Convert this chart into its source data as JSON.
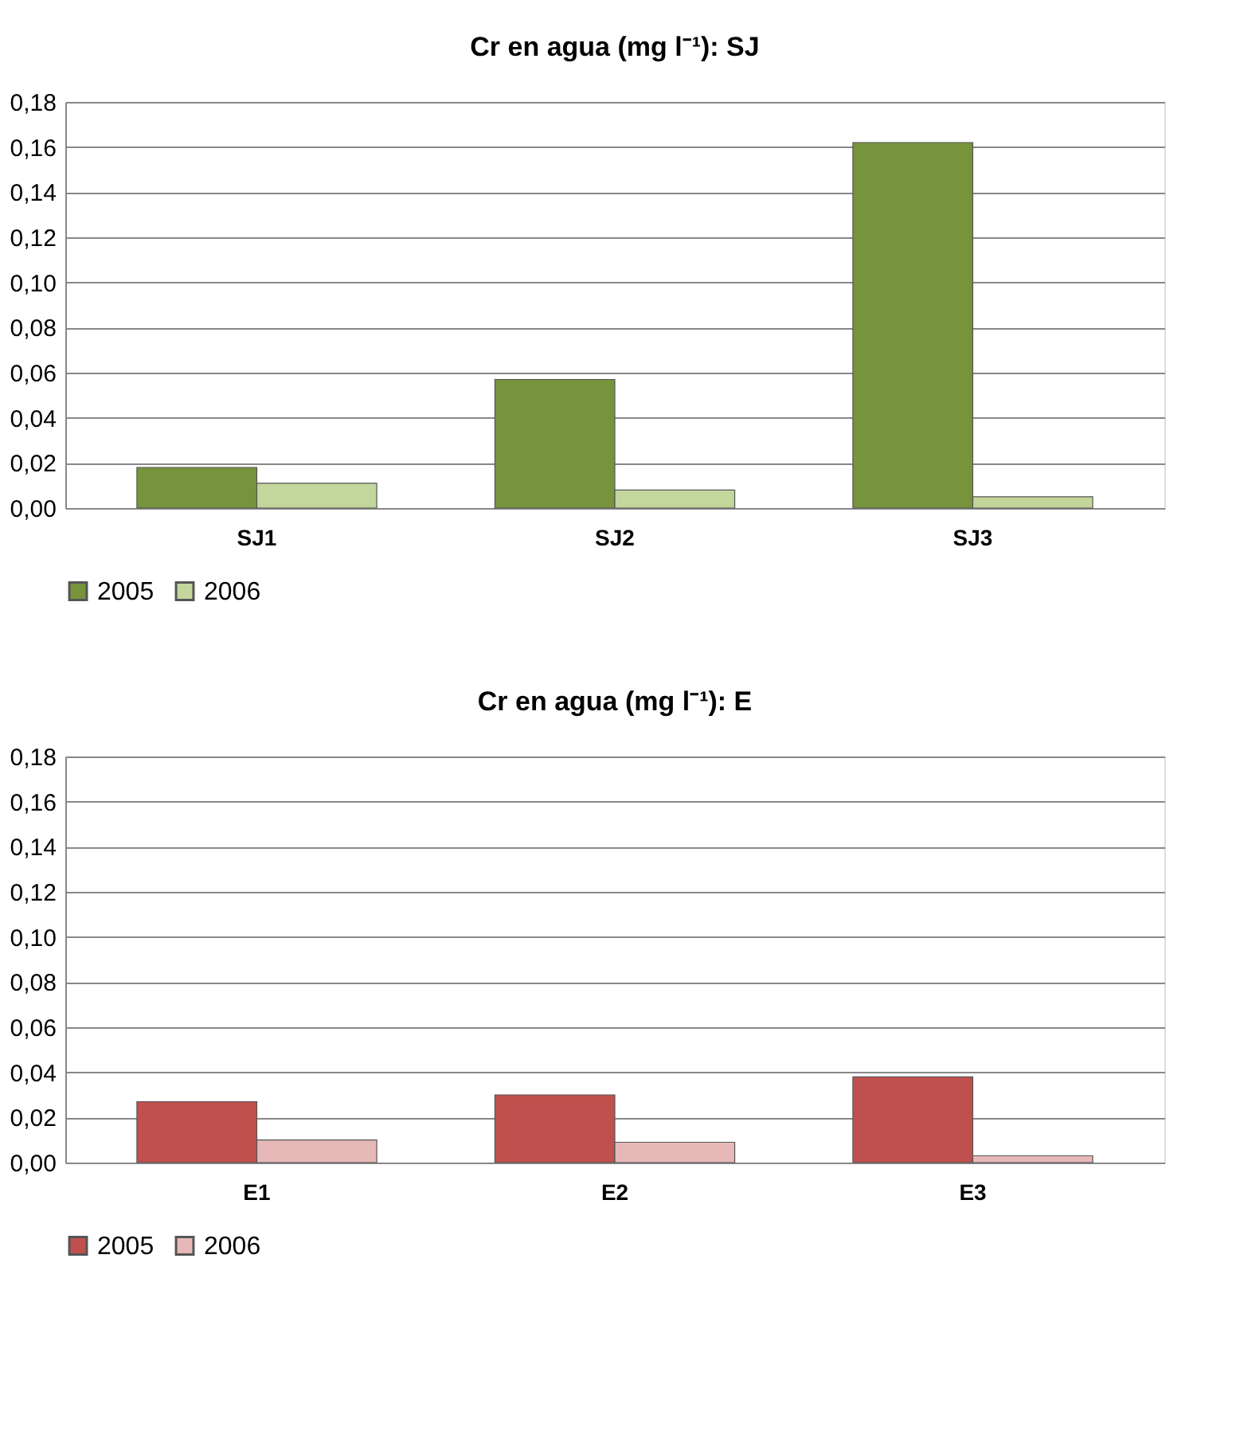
{
  "chart_data": [
    {
      "type": "bar",
      "title": "Cr en agua (mg l⁻¹): SJ",
      "categories": [
        "SJ1",
        "SJ2",
        "SJ3"
      ],
      "series": [
        {
          "name": "2005",
          "color": "#77933c",
          "values": [
            0.018,
            0.057,
            0.162
          ]
        },
        {
          "name": "2006",
          "color": "#c3d69b",
          "values": [
            0.011,
            0.008,
            0.005
          ]
        }
      ],
      "ylim": [
        0,
        0.18
      ],
      "yticks": [
        {
          "value": 0,
          "label": "0,00"
        },
        {
          "value": 0.02,
          "label": "0,02"
        },
        {
          "value": 0.04,
          "label": "0,04"
        },
        {
          "value": 0.06,
          "label": "0,06"
        },
        {
          "value": 0.08,
          "label": "0,08"
        },
        {
          "value": 0.1,
          "label": "0,10"
        },
        {
          "value": 0.12,
          "label": "0,12"
        },
        {
          "value": 0.14,
          "label": "0,14"
        },
        {
          "value": 0.16,
          "label": "0,16"
        },
        {
          "value": 0.18,
          "label": "0,18"
        }
      ],
      "grid": "y",
      "legend": "bottom"
    },
    {
      "type": "bar",
      "title": "Cr en agua (mg l⁻¹): E",
      "categories": [
        "E1",
        "E2",
        "E3"
      ],
      "series": [
        {
          "name": "2005",
          "color": "#c0504d",
          "values": [
            0.027,
            0.03,
            0.038
          ]
        },
        {
          "name": "2006",
          "color": "#e6b9b8",
          "values": [
            0.01,
            0.009,
            0.003
          ]
        }
      ],
      "ylim": [
        0,
        0.18
      ],
      "yticks": [
        {
          "value": 0,
          "label": "0,00"
        },
        {
          "value": 0.02,
          "label": "0,02"
        },
        {
          "value": 0.04,
          "label": "0,04"
        },
        {
          "value": 0.06,
          "label": "0,06"
        },
        {
          "value": 0.08,
          "label": "0,08"
        },
        {
          "value": 0.1,
          "label": "0,10"
        },
        {
          "value": 0.12,
          "label": "0,12"
        },
        {
          "value": 0.14,
          "label": "0,14"
        },
        {
          "value": 0.16,
          "label": "0,16"
        },
        {
          "value": 0.18,
          "label": "0,18"
        }
      ],
      "grid": "y",
      "legend": "bottom"
    }
  ]
}
